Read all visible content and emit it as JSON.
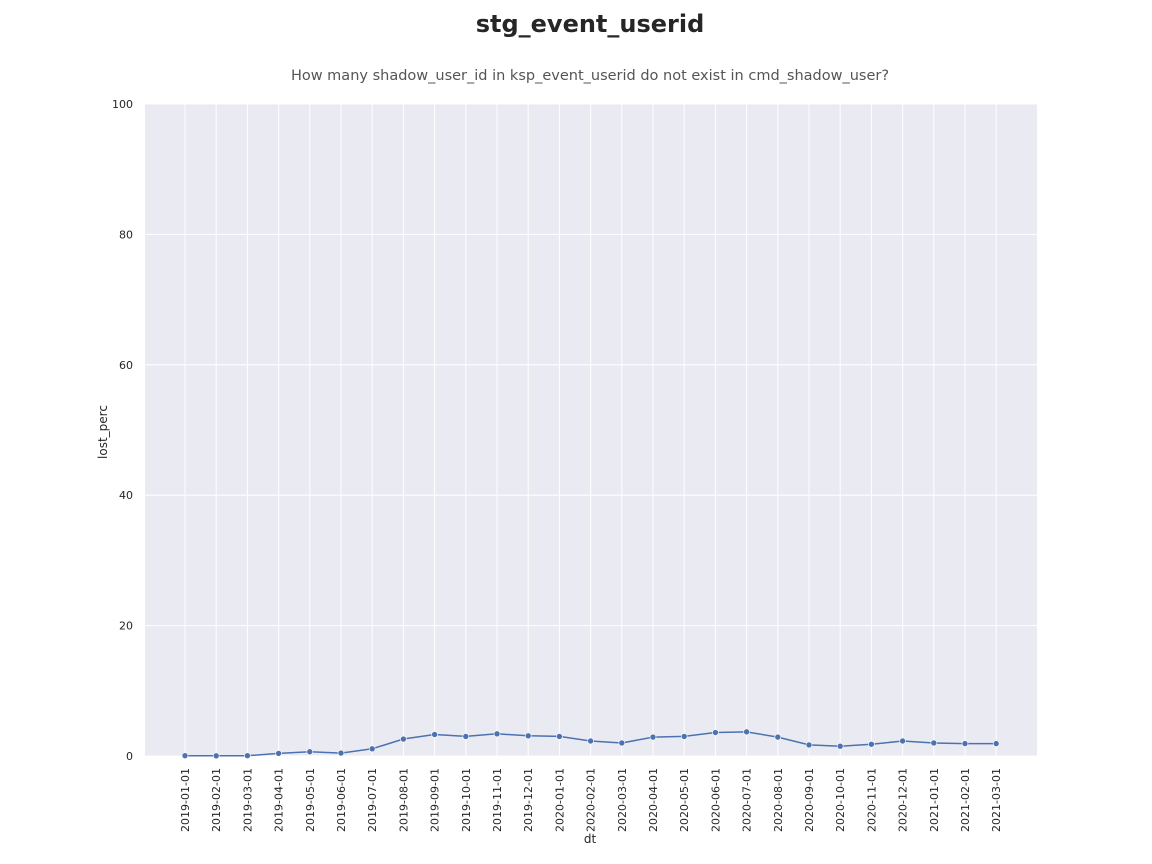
{
  "chart_data": {
    "type": "line",
    "title": "stg_event_userid",
    "subtitle": "How many shadow_user_id in ksp_event_userid do not exist in cmd_shadow_user?",
    "xlabel": "dt",
    "ylabel": "lost_perc",
    "ylim": [
      0,
      100
    ],
    "yticks": [
      "0",
      "20",
      "40",
      "60",
      "80",
      "100"
    ],
    "grid": true,
    "colors": {
      "background": "#eaeaf2",
      "grid": "#ffffff",
      "line": "#4c72b0"
    },
    "categories": [
      "2019-01-01",
      "2019-02-01",
      "2019-03-01",
      "2019-04-01",
      "2019-05-01",
      "2019-06-01",
      "2019-07-01",
      "2019-08-01",
      "2019-09-01",
      "2019-10-01",
      "2019-11-01",
      "2019-12-01",
      "2020-01-01",
      "2020-02-01",
      "2020-03-01",
      "2020-04-01",
      "2020-05-01",
      "2020-06-01",
      "2020-07-01",
      "2020-08-01",
      "2020-09-01",
      "2020-10-01",
      "2020-11-01",
      "2020-12-01",
      "2021-01-01",
      "2021-02-01",
      "2021-03-01"
    ],
    "series": [
      {
        "name": "lost_perc",
        "values": [
          0.05,
          0.03,
          0.05,
          0.4,
          0.65,
          0.45,
          1.1,
          2.6,
          3.3,
          3.0,
          3.4,
          3.1,
          3.0,
          2.3,
          2.0,
          2.9,
          3.0,
          3.6,
          3.7,
          2.9,
          1.7,
          1.5,
          1.8,
          2.3,
          2.0,
          1.9,
          1.9
        ]
      }
    ]
  }
}
